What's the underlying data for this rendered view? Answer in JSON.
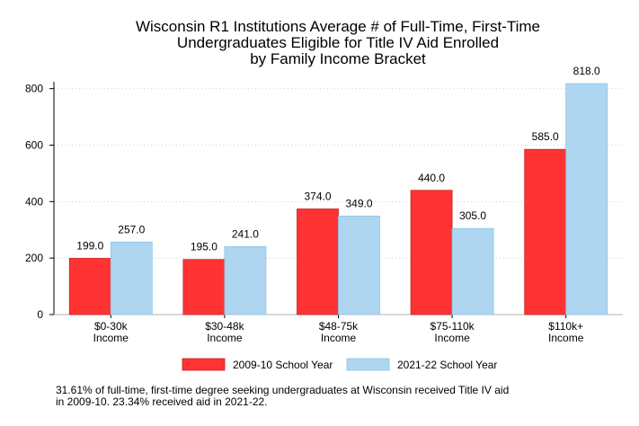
{
  "chart_data": {
    "type": "bar",
    "title_lines": [
      "Wisconsin R1 Institutions Average # of Full-Time, First-Time",
      "Undergraduates Eligible for Title IV Aid Enrolled",
      "by Family Income Bracket"
    ],
    "categories": [
      [
        "$0-30k",
        "Income"
      ],
      [
        "$30-48k",
        "Income"
      ],
      [
        "$48-75k",
        "Income"
      ],
      [
        "$75-110k",
        "Income"
      ],
      [
        "$110k+",
        "Income"
      ]
    ],
    "series": [
      {
        "name": "2009-10 School Year",
        "color": "#ff3333",
        "stroke": "#cc1f1f",
        "values": [
          199.0,
          195.0,
          374.0,
          440.0,
          585.0
        ],
        "labels": [
          "199.0",
          "195.0",
          "374.0",
          "440.0",
          "585.0"
        ]
      },
      {
        "name": "2021-22 School Year",
        "color": "#aed6f1",
        "stroke": "#8dc4e8",
        "values": [
          257.0,
          241.0,
          349.0,
          305.0,
          818.0
        ],
        "labels": [
          "257.0",
          "241.0",
          "349.0",
          "305.0",
          "818.0"
        ]
      }
    ],
    "yticks": [
      0,
      200,
      400,
      600,
      800
    ],
    "ylim": [
      0,
      818
    ],
    "grid": true,
    "legend_position": "bottom"
  },
  "caption": [
    "31.61% of full-time, first-time degree seeking undergraduates at Wisconsin received Title IV aid",
    "in 2009-10. 23.34% received aid in 2021-22."
  ]
}
